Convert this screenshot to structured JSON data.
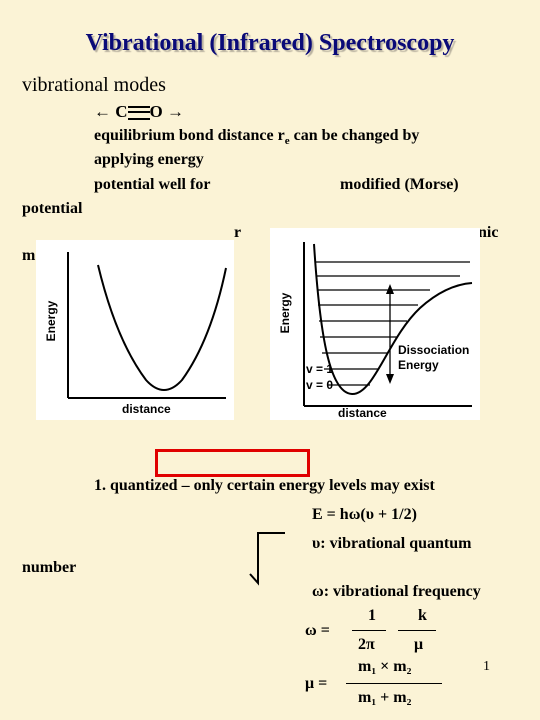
{
  "slide": {
    "title": "Vibrational (Infrared) Spectroscopy",
    "subtitle": "vibrational modes",
    "molecule": {
      "left_arrow": "←",
      "atom1": "C",
      "atom2": "O",
      "right_arrow": "→"
    },
    "line1": "equilibrium bond distance r",
    "line1_sub": "e",
    "line1_tail": " can be changed by",
    "line2": "applying energy",
    "line3a": "potential well for",
    "line3b": "modified (Morse)",
    "line4": "potential",
    "line5_partial_left": "r",
    "line5_partial_right": "nic",
    "line6_partial": "m",
    "quantized": "1. quantized – only certain energy levels may exist",
    "number_word": "number",
    "page_number": "1"
  },
  "plot_left": {
    "ylabel": "Energy",
    "xlabel": "distance"
  },
  "plot_right": {
    "ylabel": "Energy",
    "xlabel": "distance",
    "dissociation": "Dissociation",
    "dissociation2": "Energy",
    "levels": [
      "v = 1",
      "v = 0"
    ]
  },
  "equations": {
    "energy": "E = hω(υ + 1/2)",
    "upsilon": "υ: vibrational quantum",
    "omega_def": "ω: vibrational frequency",
    "omega_lhs": "ω =",
    "omega_num": "1",
    "omega_den": "2π",
    "omega_k": "k",
    "omega_mu": "μ",
    "mu_lhs": "μ =",
    "mu_num": "m₁ × m₂",
    "mu_den": "m₁ + m₂"
  }
}
